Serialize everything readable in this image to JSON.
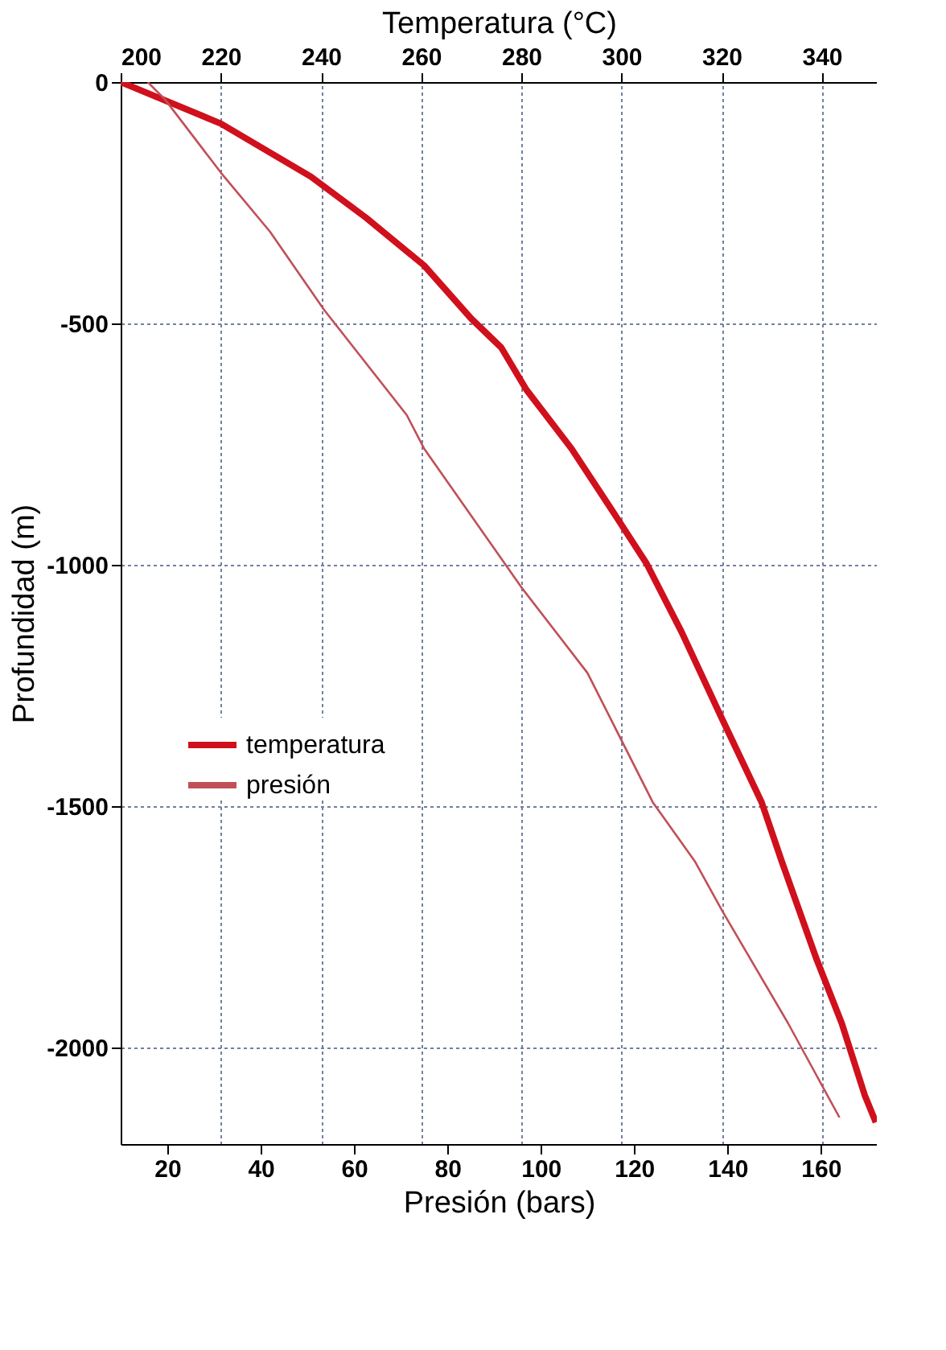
{
  "chart_data": {
    "type": "line",
    "xlabel": "Presión (bars)",
    "x2label": "Temperatura (°C)",
    "ylabel": "Profundidad (m)",
    "xlim": [
      10,
      172
    ],
    "xticks": [
      20,
      40,
      60,
      80,
      100,
      120,
      140,
      160
    ],
    "x2lim": [
      200,
      351
    ],
    "x2ticks": [
      200,
      220,
      240,
      260,
      280,
      300,
      320,
      340
    ],
    "ylim": [
      -2200,
      0
    ],
    "yticks": [
      0,
      -500,
      -1000,
      -1500,
      -2000
    ],
    "grid": true,
    "legend": "left",
    "line_style": "solid",
    "marker": "none",
    "series": [
      {
        "name": "temperatura",
        "color": "#d0101c",
        "axis": "x2",
        "x": [
          200,
          220,
          238,
          249,
          260.6,
          270,
          276,
          281,
          290,
          299,
          305,
          312,
          320,
          328,
          332,
          339,
          344,
          348.6,
          350.8
        ],
        "values": [
          0,
          -86,
          -196,
          -281,
          -380,
          -490,
          -550,
          -637,
          -759,
          -901,
          -997,
          -1139,
          -1317,
          -1492,
          -1614,
          -1818,
          -1950,
          -2099,
          -2155
        ]
      },
      {
        "name": "presión",
        "color": "#c05058",
        "x": [
          15.8,
          19.5,
          31.5,
          42,
          53.6,
          71.3,
          75,
          95.8,
          110,
          124,
          133,
          139,
          153,
          164
        ],
        "values": [
          0,
          -36,
          -188,
          -310,
          -472,
          -690,
          -759,
          -1046,
          -1224,
          -1492,
          -1614,
          -1719,
          -1950,
          -2145
        ]
      }
    ]
  }
}
